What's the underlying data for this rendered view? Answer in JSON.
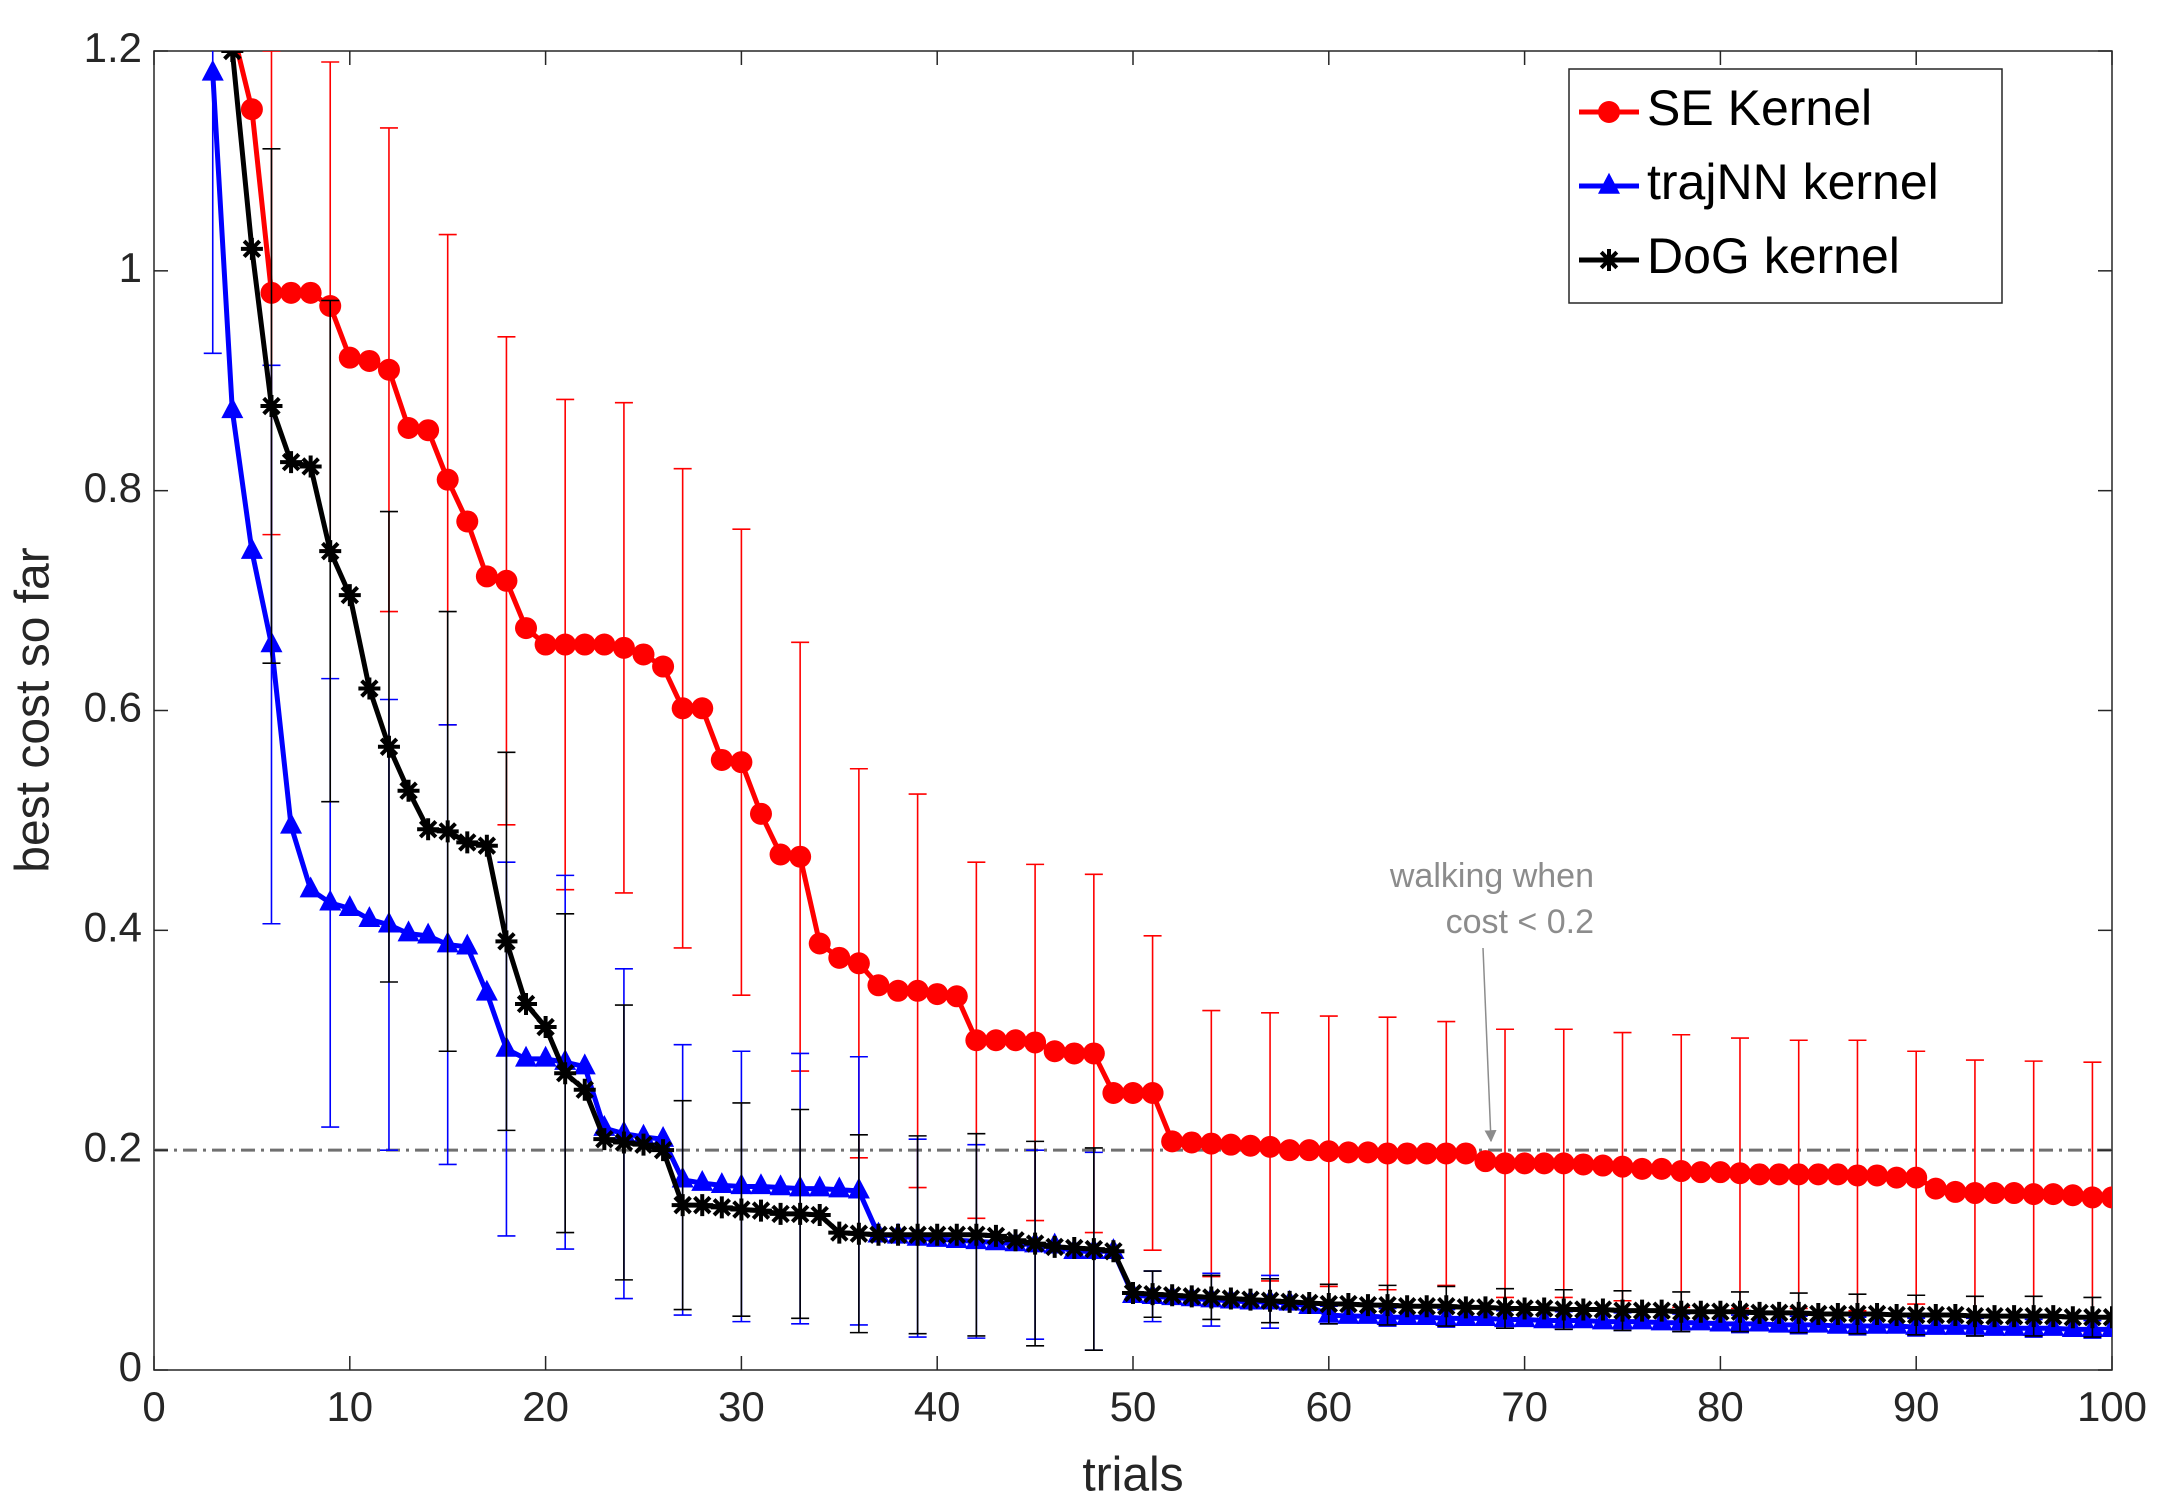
{
  "chart_data": {
    "type": "line",
    "x_label": "trials",
    "y_label": "best cost so far",
    "annotation": [
      "walking when",
      "cost < 0.2"
    ],
    "hline": {
      "value": 0.2,
      "color": "#707070"
    },
    "legend": "upper right",
    "xlim": [
      0,
      100
    ],
    "xticks": [
      0,
      10,
      20,
      30,
      40,
      50,
      60,
      70,
      80,
      90,
      100
    ],
    "ylim": [
      0,
      1.2
    ],
    "yticks": [
      0,
      0.2,
      0.4,
      0.6,
      0.8,
      1,
      1.2
    ],
    "x": [
      1,
      2,
      3,
      4,
      5,
      6,
      7,
      8,
      9,
      10,
      11,
      12,
      13,
      14,
      15,
      16,
      17,
      18,
      19,
      20,
      21,
      22,
      23,
      24,
      25,
      26,
      27,
      28,
      29,
      30,
      31,
      32,
      33,
      34,
      35,
      36,
      37,
      38,
      39,
      40,
      41,
      42,
      43,
      44,
      45,
      46,
      47,
      48,
      49,
      50,
      51,
      52,
      53,
      54,
      55,
      56,
      57,
      58,
      59,
      60,
      61,
      62,
      63,
      64,
      65,
      66,
      67,
      68,
      69,
      70,
      71,
      72,
      73,
      74,
      75,
      76,
      77,
      78,
      79,
      80,
      81,
      82,
      83,
      84,
      85,
      86,
      87,
      88,
      89,
      90,
      91,
      92,
      93,
      94,
      95,
      96,
      97,
      98,
      99,
      100
    ],
    "series": [
      {
        "name": "SE Kernel",
        "color": "#ff0000",
        "marker": "circle",
        "values": [
          null,
          null,
          null,
          1.22,
          1.147,
          0.98,
          0.98,
          0.98,
          0.968,
          0.921,
          0.918,
          0.91,
          0.857,
          0.855,
          0.81,
          0.772,
          0.722,
          0.718,
          0.675,
          0.66,
          0.66,
          0.66,
          0.66,
          0.657,
          0.651,
          0.64,
          0.602,
          0.602,
          0.555,
          0.553,
          0.506,
          0.469,
          0.467,
          0.388,
          0.375,
          0.37,
          0.35,
          0.345,
          0.345,
          0.342,
          0.34,
          0.3,
          0.3,
          0.3,
          0.298,
          0.29,
          0.288,
          0.288,
          0.252,
          0.252,
          0.252,
          0.208,
          0.207,
          0.206,
          0.205,
          0.204,
          0.203,
          0.2,
          0.2,
          0.199,
          0.198,
          0.198,
          0.197,
          0.197,
          0.197,
          0.197,
          0.197,
          0.19,
          0.188,
          0.188,
          0.188,
          0.188,
          0.187,
          0.186,
          0.185,
          0.183,
          0.183,
          0.181,
          0.18,
          0.18,
          0.179,
          0.178,
          0.178,
          0.178,
          0.178,
          0.178,
          0.177,
          0.177,
          0.175,
          0.175,
          0.165,
          0.162,
          0.161,
          0.161,
          0.161,
          0.16,
          0.16,
          0.159,
          0.157,
          0.157
        ],
        "errors": [
          null,
          null,
          null,
          null,
          null,
          0.22,
          null,
          null,
          0.222,
          null,
          null,
          0.22,
          null,
          null,
          0.223,
          null,
          null,
          0.222,
          null,
          null,
          0.223,
          null,
          null,
          0.223,
          null,
          null,
          0.218,
          null,
          null,
          0.212,
          null,
          null,
          0.195,
          null,
          null,
          0.177,
          null,
          null,
          0.179,
          null,
          null,
          0.162,
          null,
          null,
          0.162,
          null,
          null,
          0.163,
          null,
          null,
          0.143,
          null,
          null,
          0.121,
          null,
          null,
          0.122,
          null,
          null,
          0.123,
          null,
          null,
          0.124,
          null,
          null,
          0.12,
          null,
          null,
          0.122,
          null,
          null,
          0.122,
          null,
          null,
          0.122,
          null,
          null,
          0.124,
          null,
          null,
          0.123,
          null,
          null,
          0.122,
          null,
          null,
          0.123,
          null,
          null,
          0.115,
          null,
          null,
          0.121,
          null,
          null,
          0.121,
          null,
          null,
          0.123,
          null
        ]
      },
      {
        "name": "trajNN kernel",
        "color": "#0000ff",
        "marker": "triangle",
        "values": [
          null,
          null,
          1.18,
          0.873,
          0.745,
          0.66,
          0.495,
          0.437,
          0.425,
          0.42,
          0.41,
          0.405,
          0.397,
          0.395,
          0.387,
          0.385,
          0.343,
          0.292,
          0.283,
          0.283,
          0.28,
          0.276,
          0.22,
          0.215,
          0.212,
          0.21,
          0.173,
          0.17,
          0.168,
          0.167,
          0.167,
          0.166,
          0.165,
          0.165,
          0.164,
          0.163,
          0.123,
          0.122,
          0.12,
          0.119,
          0.118,
          0.117,
          0.116,
          0.115,
          0.114,
          0.113,
          0.108,
          0.108,
          0.108,
          0.068,
          0.067,
          0.066,
          0.065,
          0.064,
          0.063,
          0.062,
          0.062,
          0.061,
          0.058,
          0.05,
          0.049,
          0.049,
          0.048,
          0.048,
          0.048,
          0.047,
          0.047,
          0.047,
          0.046,
          0.046,
          0.045,
          0.045,
          0.045,
          0.044,
          0.044,
          0.044,
          0.043,
          0.043,
          0.043,
          0.042,
          0.042,
          0.042,
          0.041,
          0.041,
          0.041,
          0.04,
          0.04,
          0.04,
          0.04,
          0.039,
          0.039,
          0.039,
          0.039,
          0.038,
          0.038,
          0.038,
          0.038,
          0.037,
          0.037,
          0.037
        ],
        "errors": [
          null,
          null,
          0.255,
          null,
          null,
          0.254,
          null,
          null,
          0.204,
          null,
          null,
          0.205,
          null,
          null,
          0.2,
          null,
          null,
          0.17,
          null,
          null,
          0.17,
          null,
          null,
          0.15,
          null,
          null,
          0.123,
          null,
          null,
          0.123,
          null,
          null,
          0.123,
          null,
          null,
          0.122,
          null,
          null,
          0.09,
          null,
          null,
          0.088,
          null,
          null,
          0.086,
          null,
          null,
          0.09,
          null,
          null,
          0.023,
          null,
          null,
          0.024,
          null,
          null,
          0.024,
          null,
          null,
          0.008,
          null,
          null,
          0.008,
          null,
          null,
          0.008,
          null,
          null,
          0.008,
          null,
          null,
          0.008,
          null,
          null,
          0.008,
          null,
          null,
          0.008,
          null,
          null,
          0.008,
          null,
          null,
          0.008,
          null,
          null,
          0.008,
          null,
          null,
          0.008,
          null,
          null,
          0.008,
          null,
          null,
          0.008,
          null,
          null,
          0.008,
          null
        ]
      },
      {
        "name": "DoG kernel",
        "color": "#000000",
        "marker": "asterisk",
        "values": [
          null,
          null,
          null,
          1.2,
          1.02,
          0.877,
          0.826,
          0.822,
          0.745,
          0.705,
          0.62,
          0.567,
          0.527,
          0.492,
          0.49,
          0.48,
          0.477,
          0.39,
          0.333,
          0.312,
          0.27,
          0.255,
          0.21,
          0.207,
          0.205,
          0.2,
          0.15,
          0.15,
          0.148,
          0.146,
          0.145,
          0.142,
          0.142,
          0.141,
          0.125,
          0.124,
          0.123,
          0.123,
          0.123,
          0.123,
          0.123,
          0.123,
          0.122,
          0.118,
          0.115,
          0.112,
          0.111,
          0.11,
          0.108,
          0.07,
          0.069,
          0.068,
          0.067,
          0.066,
          0.065,
          0.064,
          0.063,
          0.062,
          0.061,
          0.06,
          0.06,
          0.059,
          0.059,
          0.058,
          0.058,
          0.058,
          0.057,
          0.057,
          0.056,
          0.056,
          0.056,
          0.055,
          0.055,
          0.055,
          0.054,
          0.054,
          0.054,
          0.053,
          0.053,
          0.053,
          0.053,
          0.052,
          0.052,
          0.052,
          0.051,
          0.051,
          0.051,
          0.051,
          0.05,
          0.05,
          0.05,
          0.05,
          0.049,
          0.049,
          0.049,
          0.049,
          0.049,
          0.048,
          0.048,
          0.048
        ],
        "errors": [
          null,
          null,
          null,
          null,
          null,
          0.234,
          null,
          null,
          0.228,
          null,
          null,
          0.214,
          null,
          null,
          0.2,
          null,
          null,
          0.172,
          null,
          null,
          0.145,
          null,
          null,
          0.125,
          null,
          null,
          0.095,
          null,
          null,
          0.097,
          null,
          null,
          0.095,
          null,
          null,
          0.09,
          null,
          null,
          0.09,
          null,
          null,
          0.092,
          null,
          null,
          0.093,
          null,
          null,
          0.092,
          null,
          null,
          0.021,
          null,
          null,
          0.02,
          null,
          null,
          0.02,
          null,
          null,
          0.018,
          null,
          null,
          0.018,
          null,
          null,
          0.018,
          null,
          null,
          0.018,
          null,
          null,
          0.018,
          null,
          null,
          0.018,
          null,
          null,
          0.018,
          null,
          null,
          0.018,
          null,
          null,
          0.018,
          null,
          null,
          0.018,
          null,
          null,
          0.018,
          null,
          null,
          0.018,
          null,
          null,
          0.018,
          null,
          null,
          0.018,
          null
        ]
      }
    ]
  }
}
